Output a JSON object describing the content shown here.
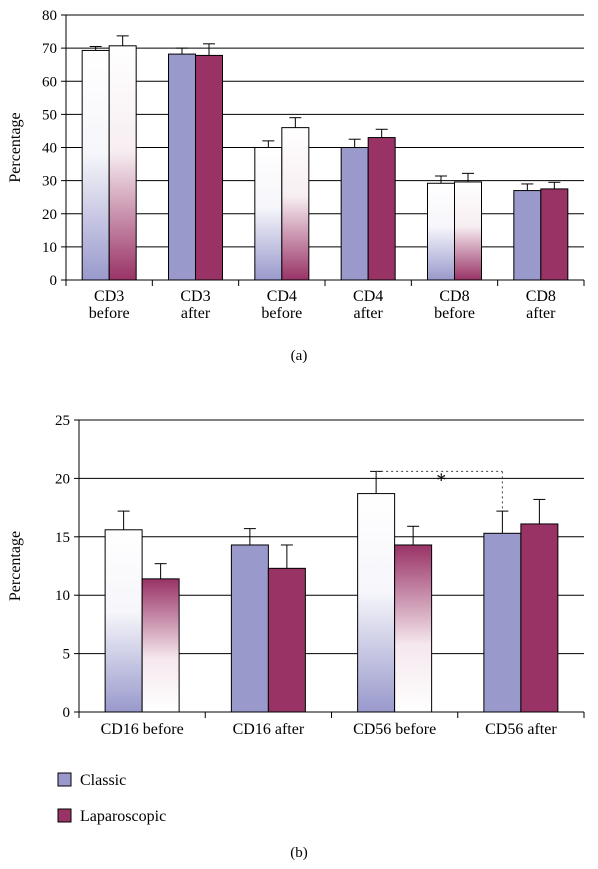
{
  "chart_data": [
    {
      "type": "bar",
      "panel_label": "(a)",
      "ylabel": "Percentage",
      "ylim": [
        0,
        80
      ],
      "yticks": [
        0,
        10,
        20,
        30,
        40,
        50,
        60,
        70,
        80
      ],
      "grid": true,
      "categories": [
        [
          "CD3",
          "before"
        ],
        [
          "CD3",
          "after"
        ],
        [
          "CD4",
          "before"
        ],
        [
          "CD4",
          "after"
        ],
        [
          "CD8",
          "before"
        ],
        [
          "CD8",
          "after"
        ]
      ],
      "series": [
        {
          "name": "Classic",
          "values": [
            69.3,
            68.2,
            40,
            40,
            29.2,
            27
          ],
          "errors": [
            1.2,
            1.8,
            2,
            2.5,
            2.2,
            2
          ]
        },
        {
          "name": "Laparoscopic",
          "values": [
            70.7,
            67.8,
            46,
            43,
            29.6,
            27.5
          ],
          "errors": [
            3,
            3.5,
            3,
            2.5,
            2.6,
            2
          ]
        }
      ],
      "fill_style": [
        "gradient",
        "solid",
        "gradient",
        "solid",
        "gradient",
        "solid"
      ]
    },
    {
      "type": "bar",
      "panel_label": "(b)",
      "ylabel": "Percentage",
      "ylim": [
        0,
        25
      ],
      "yticks": [
        0,
        5,
        10,
        15,
        20,
        25
      ],
      "grid": true,
      "categories": [
        "CD16 before",
        "CD16 after",
        "CD56 before",
        "CD56 after"
      ],
      "series": [
        {
          "name": "Classic",
          "values": [
            15.6,
            14.3,
            18.7,
            15.3
          ],
          "errors": [
            1.6,
            1.4,
            1.9,
            1.9
          ]
        },
        {
          "name": "Laparoscopic",
          "values": [
            11.4,
            12.3,
            14.3,
            16.1
          ],
          "errors": [
            1.3,
            2.0,
            1.6,
            2.1
          ]
        }
      ],
      "fill_style": [
        "gradient",
        "solid",
        "gradient",
        "solid"
      ],
      "annotation": {
        "text": "*",
        "from": [
          2,
          0
        ],
        "to": [
          3,
          0
        ]
      }
    }
  ],
  "legend": {
    "placement": "bottom-left",
    "items": [
      {
        "label": "Classic",
        "color": "#9999cc"
      },
      {
        "label": "Laparoscopic",
        "color": "#993366"
      }
    ]
  },
  "colors": {
    "classic": "#9999cc",
    "laparoscopic": "#993366"
  }
}
